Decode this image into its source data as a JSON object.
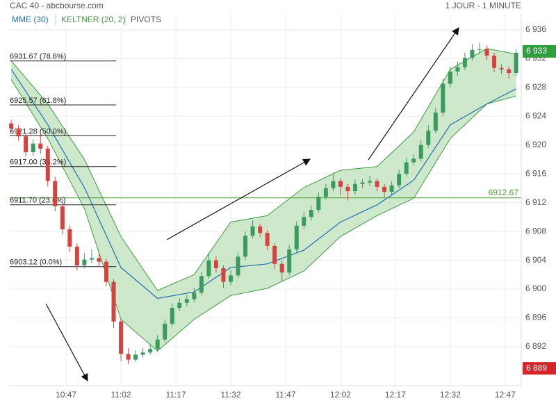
{
  "chart_data": {
    "type": "candlestick",
    "title": "CAC 40 - abcbourse.com",
    "timeframe": "1 JOUR - 1 MINUTE",
    "xlim": [
      631.6,
      771.4
    ],
    "xticks": [
      {
        "value": 647,
        "label": "10:47"
      },
      {
        "value": 662,
        "label": "11:02"
      },
      {
        "value": 677,
        "label": "11:17"
      },
      {
        "value": 692,
        "label": "11:32"
      },
      {
        "value": 707,
        "label": "11:47"
      },
      {
        "value": 722,
        "label": "12:02"
      },
      {
        "value": 737,
        "label": "12:17"
      },
      {
        "value": 752,
        "label": "12:32"
      },
      {
        "value": 767,
        "label": "12:47"
      }
    ],
    "ylim": [
      6886.6,
      6938.2
    ],
    "yticks": [
      {
        "value": 6892,
        "label": "6 892"
      },
      {
        "value": 6896,
        "label": "6 896"
      },
      {
        "value": 6900,
        "label": "6 900"
      },
      {
        "value": 6904,
        "label": "6 904"
      },
      {
        "value": 6908,
        "label": "6 908"
      },
      {
        "value": 6912,
        "label": "6 912"
      },
      {
        "value": 6916,
        "label": "6 916"
      },
      {
        "value": 6920,
        "label": "6 920"
      },
      {
        "value": 6924,
        "label": "6 924"
      },
      {
        "value": 6928,
        "label": "6 928"
      },
      {
        "value": 6932,
        "label": "6 932"
      },
      {
        "value": 6936,
        "label": "6 936"
      }
    ],
    "grid": true,
    "up_color": "#3d9a5e",
    "down_color": "#d2443f",
    "x": [
      632,
      634,
      636,
      638,
      640,
      642,
      644,
      646,
      648,
      650,
      652,
      654,
      656,
      658,
      660,
      662,
      664,
      666,
      668,
      670,
      672,
      674,
      676,
      678,
      680,
      682,
      684,
      686,
      688,
      690,
      692,
      694,
      696,
      698,
      700,
      702,
      704,
      706,
      708,
      710,
      712,
      714,
      716,
      718,
      720,
      722,
      724,
      726,
      728,
      730,
      732,
      734,
      736,
      738,
      740,
      742,
      744,
      746,
      748,
      750,
      752,
      754,
      756,
      758,
      760,
      762,
      764,
      766,
      768,
      770
    ],
    "open": [
      6923.0,
      6922.3,
      6921.2,
      6919.0,
      6920.2,
      6919.5,
      6915.0,
      6911.5,
      6908.3,
      6905.9,
      6903.3,
      6904.1,
      6904.3,
      6903.8,
      6901.0,
      6895.5,
      6891.0,
      6890.2,
      6890.9,
      6891.2,
      6891.7,
      6893.0,
      6895.2,
      6897.4,
      6898.1,
      6898.6,
      6899.5,
      6901.8,
      6904.0,
      6902.9,
      6901.0,
      6901.9,
      6904.5,
      6907.4,
      6908.7,
      6907.8,
      6906.0,
      6903.5,
      6902.3,
      6905.5,
      6908.8,
      6910.0,
      6911.0,
      6912.8,
      6914.0,
      6915.0,
      6914.2,
      6913.6,
      6914.6,
      6914.8,
      6915.0,
      6914.2,
      6913.5,
      6914.4,
      6916.0,
      6917.6,
      6918.1,
      6920.0,
      6922.0,
      6924.5,
      6928.5,
      6930.2,
      6930.8,
      6932.1,
      6933.2,
      6933.3,
      6932.4,
      6930.7,
      6930.5,
      6930.0
    ],
    "high": [
      6923.5,
      6922.8,
      6921.6,
      6920.8,
      6921.4,
      6919.9,
      6915.6,
      6912.0,
      6908.8,
      6906.3,
      6905.0,
      6905.5,
      6904.9,
      6904.2,
      6901.4,
      6895.9,
      6891.8,
      6891.5,
      6891.8,
      6892.4,
      6893.6,
      6895.8,
      6898.0,
      6898.7,
      6899.2,
      6900.2,
      6902.4,
      6905.0,
      6904.5,
      6903.3,
      6902.6,
      6905.1,
      6908.0,
      6909.6,
      6909.1,
      6908.2,
      6906.4,
      6904.0,
      6906.1,
      6909.4,
      6910.7,
      6911.6,
      6913.4,
      6914.6,
      6916.2,
      6915.4,
      6914.6,
      6915.2,
      6915.3,
      6915.7,
      6915.4,
      6914.6,
      6915.0,
      6916.6,
      6918.2,
      6918.7,
      6920.7,
      6922.8,
      6925.2,
      6929.2,
      6930.9,
      6931.6,
      6932.8,
      6934.0,
      6934.2,
      6933.8,
      6932.8,
      6931.2,
      6930.9,
      6933.3
    ],
    "low": [
      6921.8,
      6920.6,
      6918.4,
      6918.5,
      6918.8,
      6914.3,
      6910.8,
      6907.6,
      6905.2,
      6902.6,
      6902.9,
      6903.6,
      6903.1,
      6900.4,
      6894.6,
      6890.0,
      6889.6,
      6889.9,
      6890.5,
      6890.9,
      6891.3,
      6892.6,
      6894.8,
      6897.0,
      6897.6,
      6898.2,
      6899.1,
      6901.4,
      6902.3,
      6900.2,
      6900.5,
      6901.5,
      6904.0,
      6907.0,
      6907.2,
      6905.4,
      6902.8,
      6901.0,
      6901.9,
      6905.1,
      6908.3,
      6909.5,
      6910.6,
      6912.4,
      6913.6,
      6913.0,
      6912.3,
      6913.1,
      6914.0,
      6914.3,
      6913.6,
      6912.8,
      6913.1,
      6914.0,
      6915.6,
      6917.2,
      6917.7,
      6919.6,
      6921.6,
      6924.0,
      6928.0,
      6929.6,
      6930.4,
      6931.7,
      6932.6,
      6931.8,
      6930.1,
      6929.9,
      6929.2,
      6929.6
    ],
    "close": [
      6922.3,
      6921.2,
      6919.0,
      6920.2,
      6919.5,
      6915.0,
      6911.5,
      6908.3,
      6905.9,
      6903.3,
      6904.1,
      6904.3,
      6903.8,
      6901.0,
      6895.5,
      6891.0,
      6890.2,
      6890.9,
      6891.2,
      6891.7,
      6893.0,
      6895.2,
      6897.4,
      6898.1,
      6898.6,
      6899.5,
      6901.8,
      6904.0,
      6902.9,
      6901.0,
      6901.9,
      6904.5,
      6907.4,
      6908.7,
      6907.8,
      6906.0,
      6903.5,
      6902.3,
      6905.5,
      6908.8,
      6910.0,
      6911.0,
      6912.8,
      6914.0,
      6915.0,
      6914.2,
      6913.6,
      6914.6,
      6914.8,
      6915.0,
      6914.2,
      6913.5,
      6914.4,
      6916.0,
      6917.6,
      6918.1,
      6920.0,
      6922.0,
      6924.5,
      6928.5,
      6930.2,
      6930.8,
      6932.1,
      6933.2,
      6933.3,
      6932.4,
      6930.7,
      6930.5,
      6930.0,
      6932.8
    ],
    "keltner": {
      "name": "KELTNER (20, 2)",
      "color": "#3d9a3d",
      "fill": "#c9e6c6",
      "x": [
        632,
        642,
        652,
        662,
        672,
        682,
        692,
        702,
        712,
        722,
        732,
        742,
        752,
        762,
        770
      ],
      "upper": [
        6931.7,
        6925.7,
        6918.0,
        6907.3,
        6899.8,
        6902.0,
        6909.3,
        6910.2,
        6914.1,
        6916.5,
        6917.0,
        6921.8,
        6930.5,
        6933.4,
        6932.6
      ],
      "lower": [
        6929.1,
        6920.9,
        6911.2,
        6895.8,
        6891.4,
        6895.8,
        6899.1,
        6900.1,
        6902.5,
        6907.3,
        6910.2,
        6912.6,
        6920.9,
        6925.7,
        6926.8
      ]
    },
    "mme": {
      "name": "MME (30)",
      "color": "#1f6fb5",
      "x": [
        632,
        642,
        652,
        662,
        672,
        682,
        692,
        702,
        712,
        722,
        732,
        742,
        752,
        762,
        770
      ],
      "values": [
        6930.5,
        6922.8,
        6914.1,
        6903.0,
        6898.7,
        6899.6,
        6903.0,
        6903.5,
        6905.4,
        6909.3,
        6911.7,
        6915.1,
        6922.8,
        6925.7,
        6927.8
      ]
    },
    "pivots": {
      "name": "PIVOTS",
      "color": "#4a9a3a",
      "level": {
        "value": 6912.67,
        "label": "6912.67"
      }
    },
    "fibonacci": [
      {
        "value": 6931.67,
        "label": "6931.67 (78.6%)"
      },
      {
        "value": 6925.57,
        "label": "6925.57 (61.8%)"
      },
      {
        "value": 6921.28,
        "label": "6921.28 (50.0%)"
      },
      {
        "value": 6917.0,
        "label": "6917.00 (38.2%)"
      },
      {
        "value": 6911.7,
        "label": "6911.70 (23.6%)"
      },
      {
        "value": 6903.12,
        "label": "6903.12 (0.0%)"
      }
    ],
    "fib_xlim": [
      631.6,
      660.7
    ],
    "price_labels": [
      {
        "value": 6933,
        "label": "6 933",
        "color": "#2e9e3e"
      },
      {
        "value": 6889,
        "label": "6 889",
        "color": "#d2262b"
      }
    ]
  }
}
